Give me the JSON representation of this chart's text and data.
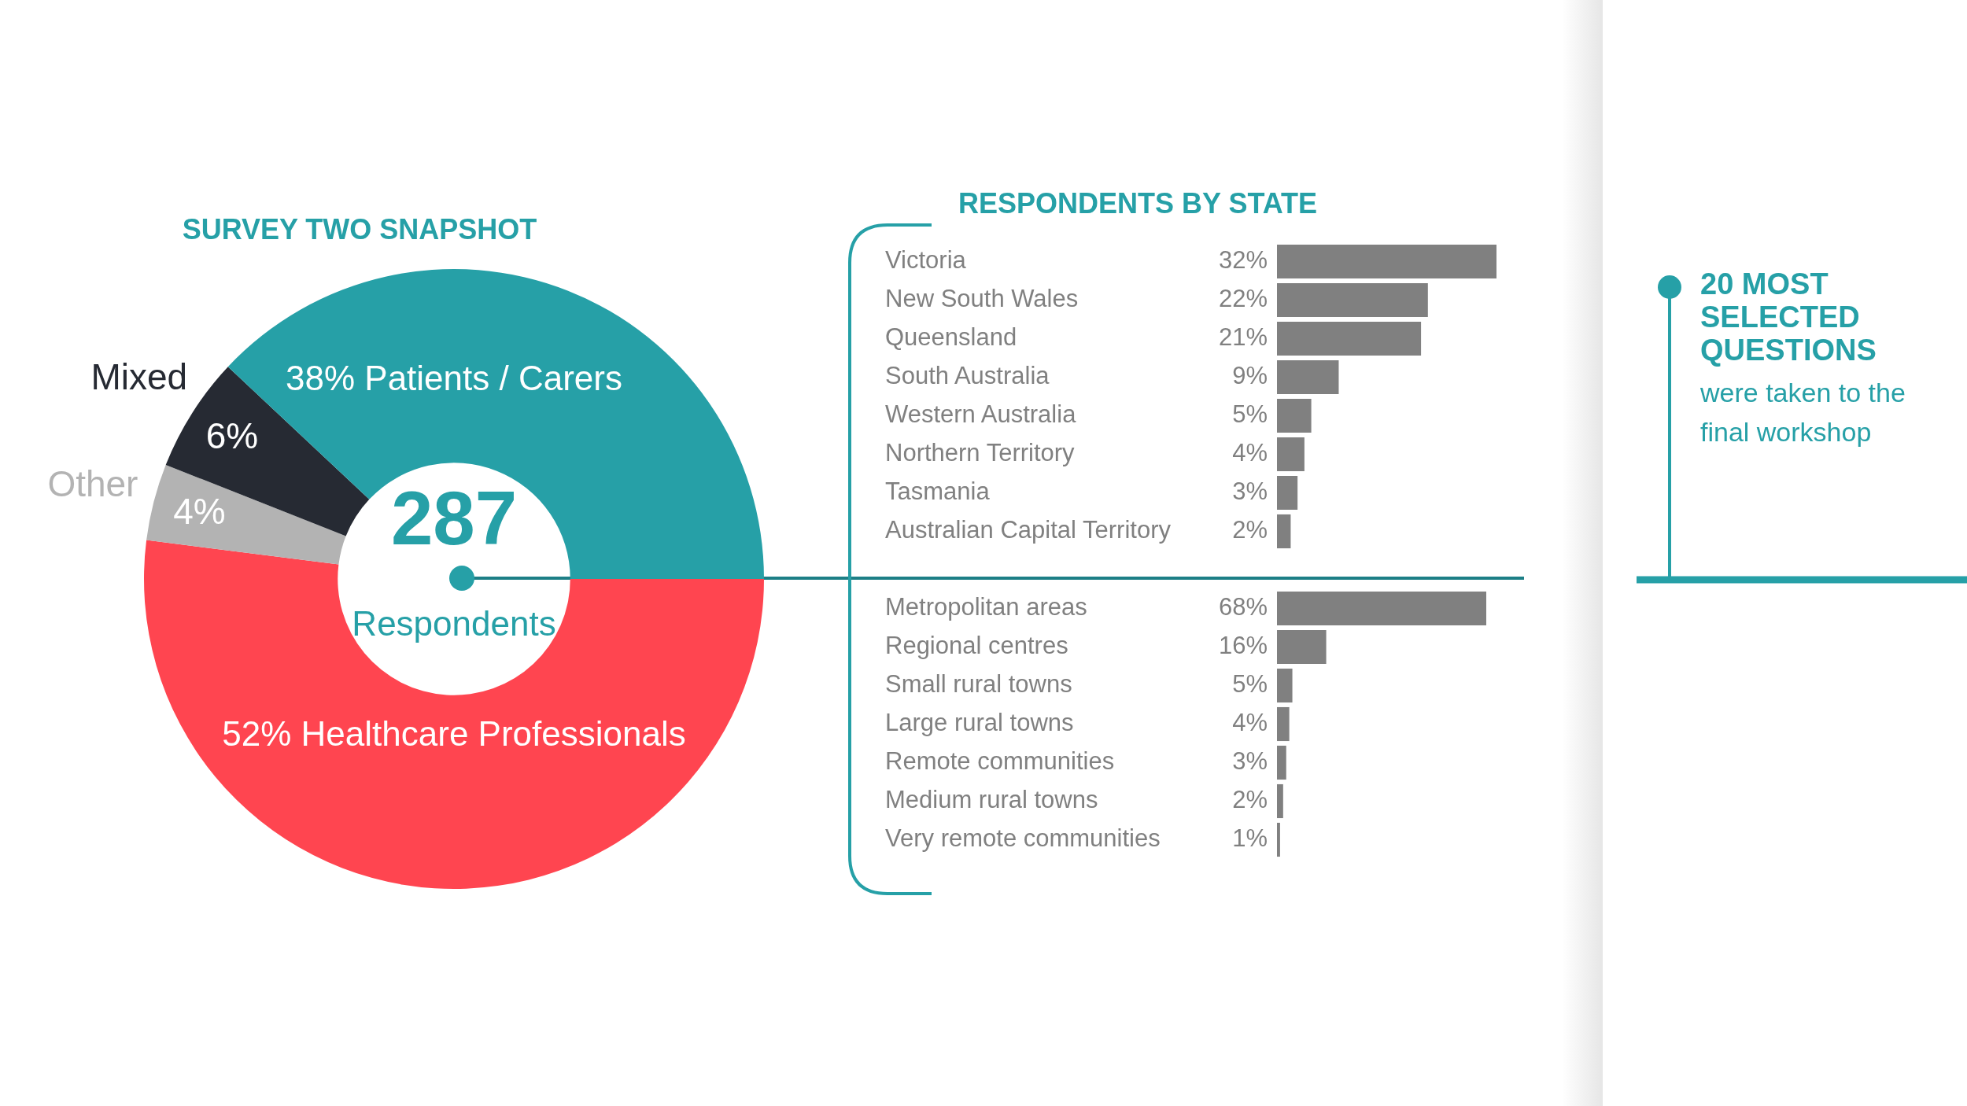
{
  "chart_data": [
    {
      "type": "donut",
      "title": "SURVEY TWO SNAPSHOT",
      "categories": [
        "Healthcare Professionals",
        "Other",
        "Mixed",
        "Patients / Carers"
      ],
      "values": [
        52,
        4,
        6,
        38
      ],
      "colors": [
        "#ff4550",
        "#b3b3b3",
        "#262a33",
        "#26a0a7"
      ],
      "value_labels": [
        "52%",
        "4%",
        "6%",
        "38%"
      ],
      "annotations": [
        "287",
        "Respondents"
      ]
    },
    {
      "type": "bar",
      "orientation": "horizontal",
      "title": "RESPONDENTS BY STATE",
      "categories": [
        "Victoria",
        "New South Wales",
        "Queensland",
        "South Australia",
        "Western Australia",
        "Northern Territory",
        "Tasmania",
        "Australian Capital Territory"
      ],
      "values": [
        32,
        22,
        21,
        9,
        5,
        4,
        3,
        2
      ],
      "color": "#808080",
      "value_labels": [
        "32%",
        "22%",
        "21%",
        "9%",
        "5%",
        "4%",
        "3%",
        "2%"
      ],
      "xlim": [
        0,
        32
      ]
    },
    {
      "type": "bar",
      "orientation": "horizontal",
      "categories": [
        "Metropolitan areas",
        "Regional centres",
        "Small rural towns",
        "Large rural towns",
        "Remote communities",
        "Medium rural towns",
        "Very remote communities"
      ],
      "values": [
        68,
        16,
        5,
        4,
        3,
        2,
        1
      ],
      "color": "#808080",
      "value_labels": [
        "68%",
        "16%",
        "5%",
        "4%",
        "3%",
        "2%",
        "1%"
      ],
      "xlim": [
        0,
        68
      ]
    },
    {
      "type": "other",
      "title": "20 MOST SELECTED QUESTIONS",
      "subtitle": "were taken to the final workshop"
    }
  ]
}
